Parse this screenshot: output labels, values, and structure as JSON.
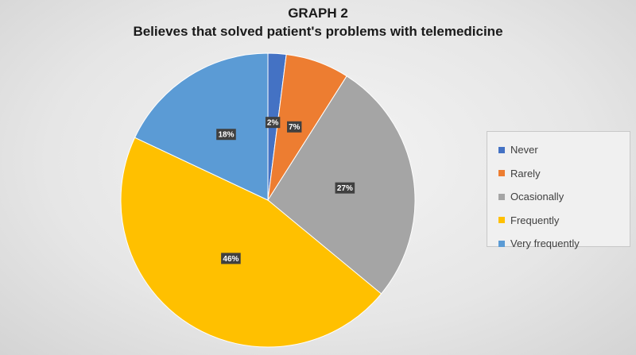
{
  "chart_data": {
    "type": "pie",
    "title": "GRAPH 2",
    "subtitle": "Believes that solved patient's problems with telemedicine",
    "categories": [
      "Never",
      "Rarely",
      "Ocasionally",
      "Frequently",
      "Very frequently"
    ],
    "values": [
      2,
      7,
      27,
      46,
      18
    ],
    "data_labels": [
      "2%",
      "7%",
      "27%",
      "46%",
      "18%"
    ],
    "colors": [
      "#4472c4",
      "#ed7d31",
      "#a5a5a5",
      "#ffc000",
      "#5b9bd5"
    ],
    "legend_position": "right"
  }
}
